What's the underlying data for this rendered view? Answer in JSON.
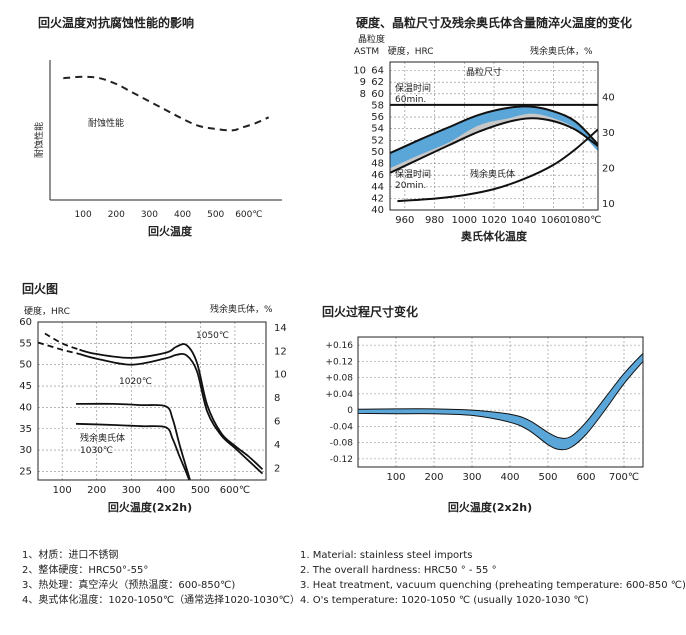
{
  "chart_data": [
    {
      "type": "line",
      "title": "回火温度对抗腐蚀性能的影响",
      "xlabel": "回火温度",
      "ylabel": "耐蚀性能",
      "series_label": "耐蚀性能",
      "x_ticks": [
        "100",
        "200",
        "300",
        "400",
        "500",
        "600℃"
      ],
      "x_tick_values": [
        100,
        200,
        300,
        400,
        500,
        600
      ],
      "xlim": [
        0,
        700
      ],
      "ylim": [
        0,
        10
      ],
      "series": [
        {
          "name": "耐蚀性能",
          "style": "dashed",
          "x": [
            40,
            100,
            150,
            200,
            250,
            300,
            350,
            400,
            450,
            500,
            550,
            580,
            620,
            660
          ],
          "y": [
            8.4,
            8.5,
            8.4,
            8.0,
            7.4,
            6.8,
            6.2,
            5.6,
            5.1,
            4.9,
            4.8,
            5.0,
            5.3,
            5.7
          ]
        }
      ]
    },
    {
      "type": "line",
      "title": "硬度、晶粒尺寸及残余奥氏体含量随淬火温度的变化",
      "xlabel": "奥氏体化温度",
      "ylabel_left_top": "晶粒度",
      "ylabel_left": "ASTM   硬度，HRC",
      "ylabel_right": "残余奥氏体，%",
      "x_ticks": [
        "960",
        "980",
        "1000",
        "1020",
        "1040",
        "1060",
        "1080℃"
      ],
      "x_tick_values": [
        960,
        980,
        1000,
        1020,
        1040,
        1060,
        1080
      ],
      "xlim": [
        950,
        1090
      ],
      "y_ticks": [
        "40",
        "42",
        "44",
        "46",
        "48",
        "50",
        "52",
        "54",
        "56",
        "58",
        "60",
        "62",
        "64"
      ],
      "left_top_ticks": [
        "10",
        "9",
        "8"
      ],
      "ylim": [
        40,
        66
      ],
      "y2_ticks": [
        "10",
        "20",
        "30",
        "40"
      ],
      "y2lim": [
        8.3,
        50
      ],
      "annotations": {
        "grain": "晶粒尺寸",
        "hold60": "保温时间",
        "hold60b": "60min.",
        "hold20": "保温时间",
        "hold20b": "20min.",
        "retained": "残余奥氏体"
      },
      "series": [
        {
          "name": "晶粒尺寸",
          "x": [
            950,
            1090
          ],
          "y": [
            58.1,
            58.1
          ]
        },
        {
          "name": "60min.",
          "x": [
            950,
            970,
            990,
            1010,
            1030,
            1045,
            1060,
            1075,
            1090
          ],
          "y": [
            49.8,
            52.1,
            54.3,
            56.4,
            57.6,
            57.8,
            57.0,
            55.2,
            51.3
          ]
        },
        {
          "name": "20min.",
          "x": [
            950,
            970,
            990,
            1010,
            1030,
            1045,
            1060,
            1075,
            1090
          ],
          "y": [
            46.4,
            48.8,
            51.2,
            53.5,
            55.2,
            55.8,
            55.3,
            53.8,
            51.0
          ]
        },
        {
          "name": "残余奥氏体",
          "axis": "right",
          "x": [
            955,
            980,
            1000,
            1020,
            1040,
            1060,
            1075,
            1090
          ],
          "y": [
            10.8,
            11.5,
            12.5,
            14.2,
            17.0,
            21.0,
            25.5,
            31.0
          ]
        }
      ]
    },
    {
      "type": "line",
      "title": "回火图",
      "xlabel": "回火温度(2x2h)",
      "ylabel_left": "硬度，HRC",
      "ylabel_right": "残余奥氏体，%",
      "x_ticks": [
        "100",
        "200",
        "300",
        "400",
        "500",
        "600℃"
      ],
      "x_tick_values": [
        100,
        200,
        300,
        400,
        500,
        600
      ],
      "xlim": [
        30,
        690
      ],
      "y_ticks": [
        "25",
        "30",
        "35",
        "40",
        "45",
        "50",
        "55",
        "60"
      ],
      "ylim": [
        23,
        60
      ],
      "y2_ticks": [
        "2",
        "4",
        "6",
        "8",
        "10",
        "12",
        "14"
      ],
      "y2lim": [
        1,
        14.5
      ],
      "annotations": {
        "t1050": "1050℃",
        "t1020": "1020℃",
        "ra1": "残余奥氏体",
        "ra2": "1030℃"
      },
      "series": [
        {
          "name": "1050℃",
          "style": "dashed-then-solid",
          "x": [
            50,
            100,
            150,
            200,
            300,
            400,
            430,
            460,
            490,
            520,
            560,
            600,
            640,
            680
          ],
          "y": [
            57.3,
            55,
            53.5,
            52.5,
            51.6,
            52.8,
            54.2,
            54.6,
            50.5,
            40.5,
            34.0,
            31.0,
            28.5,
            25.5
          ]
        },
        {
          "name": "1020℃",
          "style": "dashed-then-solid",
          "x": [
            30,
            100,
            150,
            200,
            300,
            400,
            430,
            460,
            490,
            520,
            560,
            600,
            640,
            680
          ],
          "y": [
            55.2,
            53.5,
            52.5,
            51.4,
            50.0,
            51.5,
            52.3,
            52.2,
            48.5,
            39.0,
            33.5,
            30.5,
            27.5,
            24.5
          ]
        },
        {
          "name": "残余奥氏体 1030℃",
          "axis": "right",
          "x": [
            140,
            250,
            330,
            400,
            420,
            440,
            460,
            470
          ],
          "y": [
            7.5,
            7.5,
            7.4,
            7.3,
            6.2,
            4.0,
            2.0,
            1.0
          ]
        },
        {
          "name": "residual-lower",
          "axis": "right",
          "x": [
            140,
            250,
            330,
            400,
            420,
            440,
            460,
            470
          ],
          "y": [
            5.8,
            5.7,
            5.6,
            5.5,
            4.5,
            3.0,
            1.6,
            0.8
          ]
        }
      ]
    },
    {
      "type": "area",
      "title": "回火过程尺寸变化",
      "xlabel": "回火温度(2x2h)",
      "x_ticks": [
        "100",
        "200",
        "300",
        "400",
        "500",
        "600",
        "700℃"
      ],
      "x_tick_values": [
        100,
        200,
        300,
        400,
        500,
        600,
        700
      ],
      "xlim": [
        0,
        750
      ],
      "y_ticks": [
        "+0.16",
        "+0.12",
        "+0.08",
        "+0.04",
        "0",
        "-0.04",
        "-0.08",
        "-0.12"
      ],
      "y_tick_values": [
        0.16,
        0.12,
        0.08,
        0.04,
        0,
        -0.04,
        -0.08,
        -0.12
      ],
      "ylim": [
        -0.14,
        0.18
      ],
      "band": {
        "x": [
          0,
          100,
          200,
          300,
          400,
          450,
          500,
          530,
          560,
          600,
          650,
          700,
          750
        ],
        "upper": [
          0.002,
          0.003,
          0.003,
          0.0,
          -0.01,
          -0.025,
          -0.055,
          -0.068,
          -0.065,
          -0.03,
          0.03,
          0.09,
          0.14
        ],
        "lower": [
          -0.008,
          -0.009,
          -0.009,
          -0.013,
          -0.03,
          -0.05,
          -0.085,
          -0.097,
          -0.092,
          -0.06,
          0.0,
          0.065,
          0.12
        ]
      }
    }
  ],
  "notes_cn": [
    "1、材质：进口不锈钢",
    "2、整体硬度：HRC50°-55°",
    "3、热处理：真空淬火（预热温度：600-850℃)",
    "4、奥式体化温度：1020-1050℃（通常选择1020-1030℃）"
  ],
  "notes_en": [
    "1. Material: stainless steel imports",
    "2. The overall hardness: HRC50 ° - 55 °",
    "3. Heat treatment, vacuum quenching (preheating temperature: 600-850 ℃)",
    "4. O's  temperature: 1020-1050 ℃ (usually 1020-1030 ℃)"
  ],
  "colors": {
    "band": "#5aa6d8",
    "gray": "#c8c8c8",
    "axis": "#222222",
    "grid": "#888888"
  }
}
